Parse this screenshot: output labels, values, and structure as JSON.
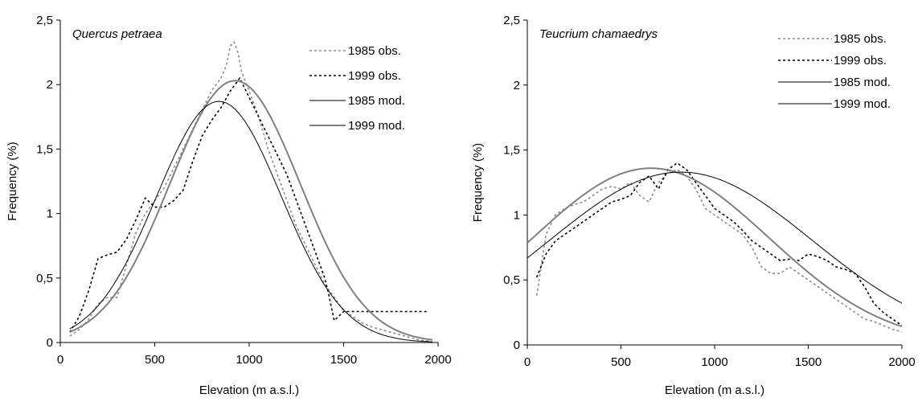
{
  "chart_data": [
    {
      "type": "line",
      "species_label": "Quercus petraea",
      "xlabel": "Elevation (m a.s.l.)",
      "ylabel": "Frequency (%)",
      "xlim": [
        0,
        2000
      ],
      "ylim": [
        0,
        2.5
      ],
      "x_ticks": [
        "0",
        "500",
        "1000",
        "1500",
        "2000"
      ],
      "y_ticks": [
        "0",
        "0,5",
        "1",
        "1,5",
        "2",
        "2,5"
      ],
      "legend_position": "top-right",
      "series": [
        {
          "name": "1985 obs.",
          "color": "#8c8c8c",
          "style": "dashed",
          "x": [
            50,
            100,
            150,
            200,
            250,
            300,
            350,
            400,
            450,
            500,
            550,
            600,
            650,
            700,
            750,
            800,
            850,
            880,
            900,
            920,
            940,
            960,
            1000,
            1050,
            1100,
            1150,
            1200,
            1250,
            1300,
            1350,
            1400,
            1450,
            1500,
            1550,
            1600,
            1650,
            1700,
            1750,
            1800,
            1850,
            1900,
            1950
          ],
          "y": [
            0.05,
            0.1,
            0.18,
            0.3,
            0.35,
            0.35,
            0.6,
            0.85,
            1.0,
            1.1,
            1.2,
            1.35,
            1.5,
            1.65,
            1.8,
            1.95,
            2.05,
            2.15,
            2.3,
            2.33,
            2.25,
            2.1,
            1.95,
            1.75,
            1.5,
            1.3,
            1.1,
            0.9,
            0.75,
            0.6,
            0.45,
            0.35,
            0.25,
            0.2,
            0.15,
            0.12,
            0.1,
            0.08,
            0.06,
            0.04,
            0.02,
            0.01
          ]
        },
        {
          "name": "1999 obs.",
          "color": "#000000",
          "style": "dashed",
          "x": [
            50,
            100,
            150,
            200,
            250,
            300,
            350,
            400,
            450,
            500,
            550,
            600,
            650,
            700,
            750,
            800,
            850,
            900,
            950,
            1000,
            1050,
            1100,
            1150,
            1200,
            1250,
            1300,
            1350,
            1400,
            1420,
            1450,
            1500,
            1550,
            1600,
            1650,
            1700,
            1750,
            1800,
            1850,
            1900,
            1950
          ],
          "y": [
            0.08,
            0.2,
            0.4,
            0.65,
            0.68,
            0.7,
            0.8,
            0.95,
            1.12,
            1.05,
            1.05,
            1.1,
            1.18,
            1.4,
            1.6,
            1.72,
            1.82,
            1.95,
            2.05,
            1.9,
            1.75,
            1.6,
            1.45,
            1.3,
            1.1,
            0.9,
            0.7,
            0.5,
            0.38,
            0.17,
            0.24,
            0.24,
            0.24,
            0.24,
            0.24,
            0.24,
            0.24,
            0.24,
            0.24,
            0.24
          ]
        },
        {
          "name": "1985 mod.",
          "color": "#808080",
          "style": "solid",
          "width": 2,
          "mu": 925,
          "sigma": 345,
          "peak": 2.03,
          "range": [
            50,
            1975
          ]
        },
        {
          "name": "1999 mod.",
          "color": "#000000",
          "style": "solid",
          "width": 1,
          "mu": 840,
          "sigma": 330,
          "peak": 1.87,
          "range": [
            50,
            1975
          ]
        }
      ]
    },
    {
      "type": "line",
      "species_label": "Teucrium chamaedrys",
      "xlabel": "Elevation (m a.s.l.)",
      "ylabel": "Frequency (%)",
      "xlim": [
        0,
        2000
      ],
      "ylim": [
        0,
        2.5
      ],
      "x_ticks": [
        "0",
        "500",
        "1000",
        "1500",
        "2000"
      ],
      "y_ticks": [
        "0",
        "0,5",
        "1",
        "1,5",
        "2",
        "2,5"
      ],
      "legend_position": "top-right",
      "series": [
        {
          "name": "1985 obs.",
          "color": "#8c8c8c",
          "style": "dashed",
          "x": [
            50,
            100,
            150,
            200,
            250,
            300,
            350,
            400,
            450,
            500,
            550,
            600,
            650,
            700,
            750,
            800,
            850,
            900,
            950,
            1000,
            1050,
            1100,
            1150,
            1200,
            1250,
            1300,
            1350,
            1400,
            1450,
            1500,
            1550,
            1600,
            1650,
            1700,
            1750,
            1800,
            1850,
            1900,
            1950,
            2000
          ],
          "y": [
            0.38,
            0.85,
            1.0,
            1.05,
            1.08,
            1.1,
            1.15,
            1.2,
            1.22,
            1.2,
            1.25,
            1.15,
            1.1,
            1.25,
            1.32,
            1.35,
            1.3,
            1.2,
            1.05,
            1.0,
            0.95,
            0.9,
            0.85,
            0.75,
            0.6,
            0.55,
            0.55,
            0.6,
            0.55,
            0.5,
            0.45,
            0.4,
            0.35,
            0.3,
            0.25,
            0.2,
            0.18,
            0.15,
            0.12,
            0.1
          ]
        },
        {
          "name": "1999 obs.",
          "color": "#000000",
          "style": "dashed",
          "x": [
            50,
            100,
            150,
            200,
            250,
            300,
            350,
            400,
            450,
            500,
            550,
            600,
            650,
            700,
            750,
            800,
            850,
            900,
            950,
            1000,
            1050,
            1100,
            1150,
            1200,
            1250,
            1300,
            1350,
            1400,
            1450,
            1500,
            1550,
            1600,
            1650,
            1700,
            1750,
            1800,
            1850,
            1900,
            1950,
            2000
          ],
          "y": [
            0.52,
            0.7,
            0.8,
            0.85,
            0.9,
            0.95,
            1.0,
            1.05,
            1.1,
            1.12,
            1.15,
            1.25,
            1.3,
            1.2,
            1.35,
            1.4,
            1.35,
            1.25,
            1.15,
            1.05,
            1.0,
            0.95,
            0.88,
            0.8,
            0.75,
            0.7,
            0.65,
            0.66,
            0.65,
            0.7,
            0.68,
            0.65,
            0.6,
            0.58,
            0.55,
            0.45,
            0.32,
            0.25,
            0.2,
            0.15
          ]
        },
        {
          "name": "1985 mod.",
          "color": "#808080",
          "style": "solid",
          "width": 2,
          "mu": 660,
          "sigma": 630,
          "peak": 1.36,
          "range": [
            0,
            2000
          ]
        },
        {
          "name": "1999 mod.",
          "color": "#000000",
          "style": "solid",
          "width": 1,
          "mu": 820,
          "sigma": 700,
          "peak": 1.33,
          "range": [
            0,
            2000
          ]
        }
      ]
    }
  ]
}
